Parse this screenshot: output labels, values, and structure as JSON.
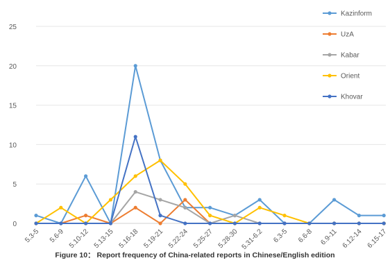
{
  "chart_data": {
    "type": "line",
    "title": "",
    "caption": "Figure 10： Report frequency of China-related reports in Chinese/English edition",
    "xlabel": "",
    "ylabel": "",
    "ylim": [
      0,
      25
    ],
    "yticks": [
      0,
      5,
      10,
      15,
      20,
      25
    ],
    "grid": true,
    "legend_position": "right",
    "categories": [
      "5.3-5",
      "5.6-9",
      "5.10-12",
      "5.13-15",
      "5.16-18",
      "5.19-21",
      "5.22-24",
      "5.25-27",
      "5.28-30",
      "5.31-6.2",
      "6.3-5",
      "6.6-8",
      "6.9-11",
      "6.12-14",
      "6.15-17"
    ],
    "series": [
      {
        "name": "Kazinform",
        "color": "#5B9BD5",
        "values": [
          1,
          0,
          6,
          0,
          20,
          8,
          2,
          2,
          1,
          3,
          0,
          0,
          3,
          1,
          1
        ]
      },
      {
        "name": "UzA",
        "color": "#ED7D31",
        "values": [
          0,
          0,
          1,
          0,
          2,
          0,
          3,
          0,
          0,
          0,
          0,
          0,
          0,
          0,
          0
        ]
      },
      {
        "name": "Kabar",
        "color": "#A5A5A5",
        "values": [
          0,
          0,
          0,
          0,
          4,
          3,
          2,
          0,
          1,
          0,
          0,
          0,
          0,
          0,
          0
        ]
      },
      {
        "name": "Orient",
        "color": "#FFC000",
        "values": [
          0,
          2,
          0,
          3,
          6,
          8,
          5,
          1,
          0,
          2,
          1,
          0,
          0,
          0,
          0
        ]
      },
      {
        "name": "Khovar",
        "color": "#4472C4",
        "values": [
          0,
          0,
          0,
          0,
          11,
          1,
          0,
          0,
          0,
          0,
          0,
          0,
          0,
          0,
          0
        ]
      }
    ]
  }
}
